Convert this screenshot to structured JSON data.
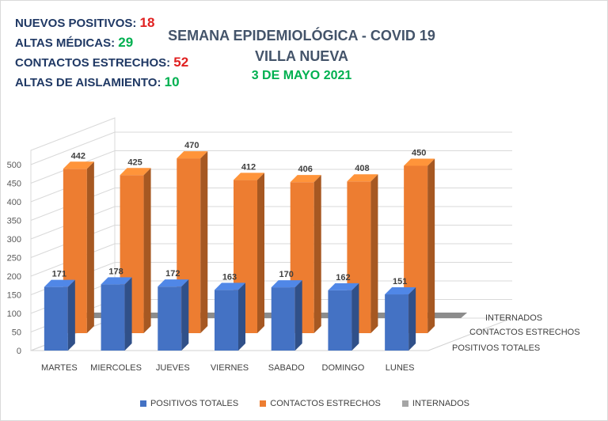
{
  "stats": [
    {
      "label": "NUEVOS POSITIVOS: ",
      "value": "18",
      "color": "#e02020"
    },
    {
      "label": "ALTAS MÉDICAS: ",
      "value": "29",
      "color": "#00b050"
    },
    {
      "label": "CONTACTOS ESTRECHOS: ",
      "value": "52",
      "color": "#e02020"
    },
    {
      "label": "ALTAS DE AISLAMIENTO: ",
      "value": "10",
      "color": "#00b050"
    }
  ],
  "title": {
    "line1": "SEMANA EPIDEMIOLÓGICA - COVID 19",
    "line2": "VILLA NUEVA",
    "line3": "3 DE MAYO 2021"
  },
  "chart_data": {
    "type": "bar",
    "categories": [
      "MARTES",
      "MIERCOLES",
      "JUEVES",
      "VIERNES",
      "SABADO",
      "DOMINGO",
      "LUNES"
    ],
    "series": [
      {
        "name": "POSITIVOS TOTALES",
        "values": [
          171,
          178,
          172,
          163,
          170,
          162,
          151
        ],
        "color": "#4472c4"
      },
      {
        "name": "CONTACTOS ESTRECHOS",
        "values": [
          442,
          425,
          470,
          412,
          406,
          408,
          450
        ],
        "color": "#ed7d31"
      },
      {
        "name": "INTERNADOS",
        "values": [
          5,
          4,
          3,
          3,
          4,
          3,
          3
        ],
        "color": "#a5a5a5"
      }
    ],
    "y_ticks": [
      0,
      50,
      100,
      150,
      200,
      250,
      300,
      350,
      400,
      450,
      500
    ],
    "ylim": [
      0,
      500
    ],
    "depth_axis_labels": [
      "POSITIVOS TOTALES",
      "CONTACTOS ESTRECHOS",
      "INTERNADOS"
    ],
    "legend_position": "bottom",
    "grid": true
  }
}
